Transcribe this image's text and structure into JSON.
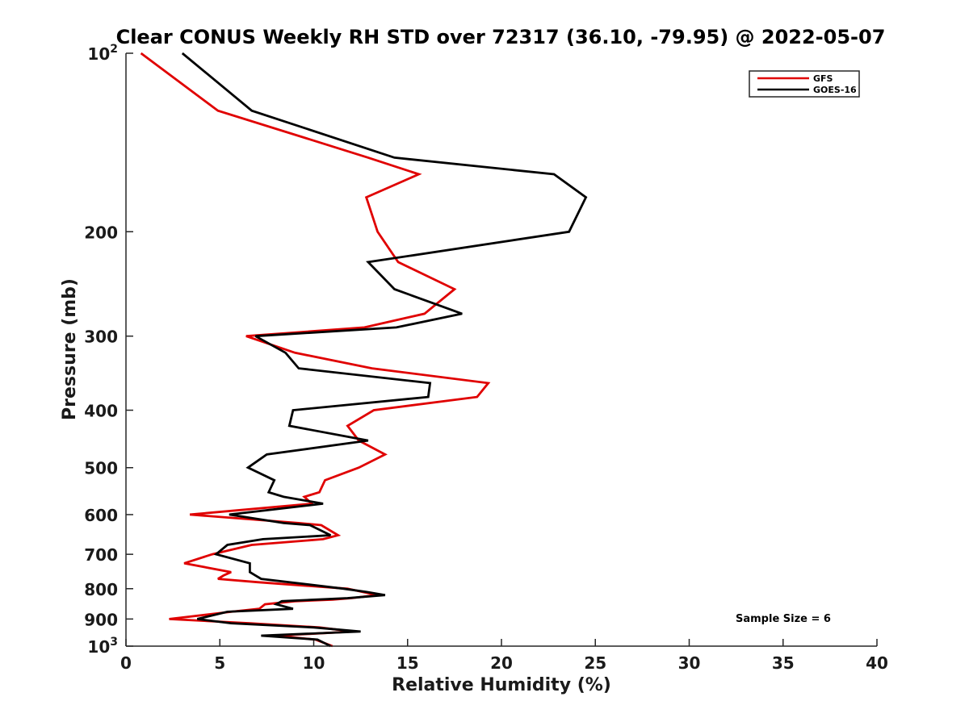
{
  "chart_data": {
    "type": "line",
    "title": "Clear CONUS Weekly RH STD over 72317 (36.10, -79.95) @ 2022-05-07",
    "xlabel": "Relative Humidity (%)",
    "ylabel": "Pressure (mb)",
    "xlim": [
      0,
      40
    ],
    "ylim": [
      100,
      1000
    ],
    "y_scale": "log",
    "y_reversed": true,
    "x_ticks": [
      "0",
      "5",
      "10",
      "15",
      "20",
      "25",
      "30",
      "35",
      "40"
    ],
    "y_ticks": [
      {
        "value": 100,
        "base": "10",
        "exp": "2"
      },
      {
        "value": 200,
        "label": "200"
      },
      {
        "value": 300,
        "label": "300"
      },
      {
        "value": 400,
        "label": "400"
      },
      {
        "value": 500,
        "label": "500"
      },
      {
        "value": 600,
        "label": "600"
      },
      {
        "value": 700,
        "label": "700"
      },
      {
        "value": 800,
        "label": "800"
      },
      {
        "value": 900,
        "label": "900"
      },
      {
        "value": 1000,
        "base": "10",
        "exp": "3"
      }
    ],
    "grid": false,
    "legend_position": "top-right",
    "annotation": "Sample Size = 6",
    "series": [
      {
        "name": "GFS",
        "color": "#e00000",
        "points": [
          [
            0.8,
            100
          ],
          [
            4.9,
            125
          ],
          [
            12.9,
            150
          ],
          [
            15.6,
            160
          ],
          [
            12.8,
            175
          ],
          [
            13.4,
            200
          ],
          [
            14.5,
            225
          ],
          [
            17.5,
            250
          ],
          [
            15.9,
            275
          ],
          [
            12.7,
            290
          ],
          [
            6.4,
            300
          ],
          [
            9.0,
            320
          ],
          [
            13.1,
            340
          ],
          [
            19.3,
            360
          ],
          [
            18.7,
            380
          ],
          [
            13.2,
            400
          ],
          [
            11.8,
            425
          ],
          [
            12.4,
            450
          ],
          [
            13.8,
            475
          ],
          [
            12.4,
            500
          ],
          [
            10.6,
            525
          ],
          [
            10.3,
            550
          ],
          [
            9.5,
            560
          ],
          [
            9.9,
            575
          ],
          [
            3.4,
            600
          ],
          [
            9.2,
            620
          ],
          [
            10.4,
            625
          ],
          [
            11.3,
            650
          ],
          [
            10.5,
            660
          ],
          [
            6.7,
            675
          ],
          [
            4.6,
            700
          ],
          [
            3.1,
            725
          ],
          [
            5.6,
            750
          ],
          [
            5.2,
            760
          ],
          [
            4.9,
            770
          ],
          [
            7.0,
            780
          ],
          [
            11.8,
            800
          ],
          [
            12.6,
            810
          ],
          [
            13.4,
            820
          ],
          [
            12.0,
            830
          ],
          [
            11.0,
            835
          ],
          [
            9.0,
            840
          ],
          [
            7.4,
            850
          ],
          [
            7.1,
            865
          ],
          [
            5.6,
            875
          ],
          [
            2.3,
            900
          ],
          [
            6.6,
            915
          ],
          [
            10.3,
            930
          ],
          [
            12.1,
            945
          ],
          [
            8.0,
            960
          ],
          [
            10.1,
            975
          ],
          [
            11.0,
            1000
          ]
        ]
      },
      {
        "name": "GOES-16",
        "color": "#000000",
        "points": [
          [
            3.0,
            100
          ],
          [
            6.7,
            125
          ],
          [
            14.3,
            150
          ],
          [
            22.8,
            160
          ],
          [
            24.5,
            175
          ],
          [
            23.6,
            200
          ],
          [
            12.9,
            225
          ],
          [
            14.3,
            250
          ],
          [
            17.9,
            275
          ],
          [
            14.4,
            290
          ],
          [
            6.9,
            300
          ],
          [
            8.5,
            320
          ],
          [
            9.2,
            340
          ],
          [
            16.2,
            360
          ],
          [
            16.1,
            380
          ],
          [
            8.9,
            400
          ],
          [
            8.7,
            425
          ],
          [
            12.9,
            450
          ],
          [
            7.5,
            475
          ],
          [
            6.5,
            500
          ],
          [
            7.9,
            525
          ],
          [
            7.6,
            550
          ],
          [
            8.4,
            560
          ],
          [
            10.5,
            575
          ],
          [
            5.5,
            600
          ],
          [
            8.4,
            620
          ],
          [
            9.8,
            625
          ],
          [
            10.9,
            650
          ],
          [
            7.3,
            660
          ],
          [
            5.4,
            675
          ],
          [
            4.8,
            700
          ],
          [
            6.6,
            725
          ],
          [
            6.6,
            750
          ],
          [
            6.9,
            760
          ],
          [
            7.2,
            770
          ],
          [
            11.6,
            800
          ],
          [
            12.8,
            810
          ],
          [
            13.8,
            820
          ],
          [
            11.8,
            830
          ],
          [
            8.3,
            840
          ],
          [
            8.0,
            850
          ],
          [
            8.9,
            865
          ],
          [
            5.4,
            875
          ],
          [
            3.8,
            900
          ],
          [
            5.6,
            915
          ],
          [
            10.0,
            930
          ],
          [
            12.5,
            945
          ],
          [
            7.2,
            960
          ],
          [
            10.2,
            975
          ],
          [
            10.9,
            1000
          ]
        ]
      }
    ]
  }
}
